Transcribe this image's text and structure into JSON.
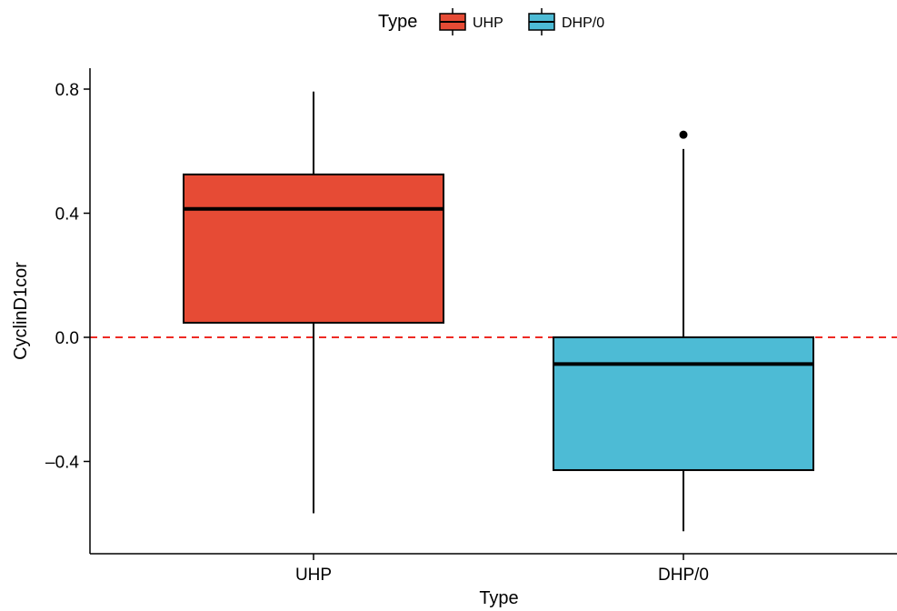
{
  "chart_data": {
    "type": "box",
    "xlabel": "Type",
    "ylabel": "CyclinD1cor",
    "ylim": [
      -0.69,
      0.87
    ],
    "yticks": [
      {
        "value": 0.8,
        "label": "0.8"
      },
      {
        "value": 0.4,
        "label": "0.4"
      },
      {
        "value": 0.0,
        "label": "0.0"
      },
      {
        "value": -0.4,
        "label": "–0.4"
      }
    ],
    "reference_line": {
      "y": 0.0,
      "style": "dashed",
      "color": "#ee2a24"
    },
    "legend": {
      "title": "Type",
      "position": "top",
      "entries": [
        {
          "label": "UHP",
          "color": "#e64b35"
        },
        {
          "label": "DHP/0",
          "color": "#4dbbd5"
        }
      ]
    },
    "categories": [
      "UHP",
      "DHP/0"
    ],
    "boxes": [
      {
        "category": "UHP",
        "color": "#e64b35",
        "whisker_low": -0.567,
        "q1": 0.047,
        "median": 0.414,
        "q3": 0.525,
        "whisker_high": 0.792,
        "outliers": []
      },
      {
        "category": "DHP/0",
        "color": "#4dbbd5",
        "whisker_low": -0.625,
        "q1": -0.428,
        "median": -0.086,
        "q3": 0.0,
        "whisker_high": 0.607,
        "outliers": [
          0.653
        ]
      }
    ]
  }
}
